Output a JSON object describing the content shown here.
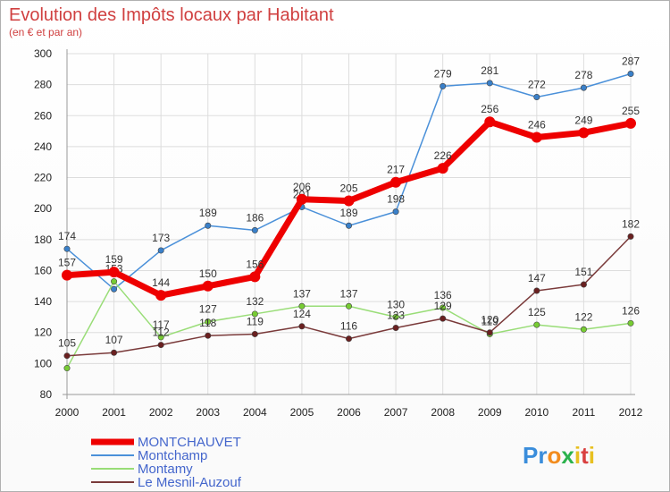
{
  "chart_data": {
    "type": "line",
    "title": "Evolution des Impôts locaux par Habitant",
    "subtitle": "(en € et par an)",
    "x": [
      "2000",
      "2001",
      "2002",
      "2003",
      "2004",
      "2005",
      "2006",
      "2007",
      "2008",
      "2009",
      "2010",
      "2011",
      "2012"
    ],
    "ylim": [
      80,
      300
    ],
    "yticks": [
      "80",
      "100",
      "120",
      "140",
      "160",
      "180",
      "200",
      "220",
      "240",
      "260",
      "280",
      "300"
    ],
    "grid": true,
    "legend_position": "bottom-left",
    "series": [
      {
        "name": "Montchamp",
        "color": "#4a90d9",
        "point": "#3a80c9",
        "values": [
          174,
          148,
          173,
          189,
          186,
          201,
          189,
          198,
          279,
          281,
          272,
          278,
          287
        ],
        "labels": [
          "174",
          "",
          "173",
          "189",
          "186",
          "201",
          "189",
          "198",
          "279",
          "281",
          "272",
          "278",
          "287"
        ]
      },
      {
        "name": "Montamy",
        "color": "#99dd77",
        "point": "#77cc33",
        "values": [
          97,
          153,
          117,
          127,
          132,
          137,
          137,
          130,
          136,
          119,
          125,
          122,
          126
        ],
        "labels": [
          "",
          "153",
          "117",
          "127",
          "132",
          "137",
          "137",
          "130",
          "136",
          "119",
          "125",
          "122",
          "126"
        ]
      },
      {
        "name": "Le Mesnil-Auzouf",
        "color": "#7a3a3a",
        "point": "#6a2020",
        "values": [
          105,
          107,
          112,
          118,
          119,
          124,
          116,
          123,
          129,
          120,
          147,
          151,
          182
        ],
        "labels": [
          "105",
          "107",
          "112",
          "118",
          "119",
          "124",
          "116",
          "123",
          "129",
          "120",
          "147",
          "151",
          "182"
        ]
      },
      {
        "name": "MONTCHAUVET",
        "color": "#ee0000",
        "point": "#ee0000",
        "values": [
          157,
          159,
          144,
          150,
          156,
          206,
          205,
          217,
          226,
          256,
          246,
          249,
          255
        ],
        "labels": [
          "157",
          "159",
          "144",
          "150",
          "156",
          "206",
          "205",
          "217",
          "226",
          "256",
          "246",
          "249",
          "255"
        ]
      }
    ],
    "legend": [
      "MONTCHAUVET",
      "Montchamp",
      "Montamy",
      "Le Mesnil-Auzouf"
    ]
  },
  "branding": {
    "logo_text": "Proxiti",
    "logo_letters": [
      "P",
      "r",
      "o",
      "x",
      "i",
      "t",
      "i"
    ],
    "logo_colors": [
      "#3a8ddb",
      "#3a8ddb",
      "#f28c1e",
      "#2bb24c",
      "#e8c020",
      "#d94040",
      "#e8c020"
    ]
  },
  "colors": {
    "accent": "#ee0000",
    "title": "#d04040"
  }
}
